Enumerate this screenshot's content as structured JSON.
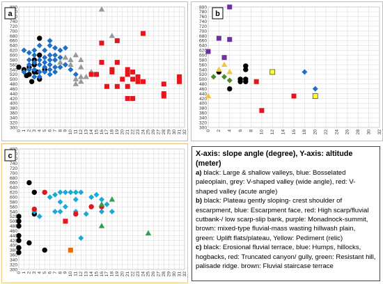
{
  "chart_data": [
    {
      "type": "scatter",
      "panel_label": "a",
      "xlim": [
        0,
        32
      ],
      "ylim": [
        300,
        800
      ],
      "xticks": [
        0,
        1,
        2,
        3,
        4,
        5,
        6,
        7,
        8,
        9,
        10,
        11,
        12,
        13,
        14,
        15,
        16,
        17,
        18,
        19,
        20,
        21,
        22,
        23,
        24,
        25,
        26,
        27,
        28,
        29,
        30,
        31,
        32
      ],
      "yticks": [
        300,
        320,
        340,
        360,
        380,
        400,
        420,
        440,
        460,
        480,
        500,
        520,
        540,
        560,
        580,
        600,
        620,
        640,
        660,
        680,
        700,
        720,
        740,
        760,
        780,
        800
      ],
      "grid": true,
      "series": [
        {
          "color": "#000000",
          "marker": "circle",
          "points": [
            [
              0,
              550
            ],
            [
              1,
              540
            ],
            [
              2,
              550
            ],
            [
              1.5,
              515
            ],
            [
              2,
              520
            ],
            [
              3,
              580
            ],
            [
              3,
              560
            ],
            [
              3,
              530
            ],
            [
              4,
              670
            ],
            [
              4,
              600
            ],
            [
              4,
              500
            ],
            [
              5,
              540
            ],
            [
              2.5,
              490
            ],
            [
              3.5,
              530
            ]
          ]
        },
        {
          "color": "#1f6fc5",
          "marker": "diamond",
          "points": [
            [
              1,
              620
            ],
            [
              2,
              610
            ],
            [
              2,
              580
            ],
            [
              2,
              560
            ],
            [
              2,
              540
            ],
            [
              1,
              530
            ],
            [
              3,
              620
            ],
            [
              3,
              600
            ],
            [
              3,
              570
            ],
            [
              3,
              540
            ],
            [
              3,
              510
            ],
            [
              4,
              580
            ],
            [
              4,
              560
            ],
            [
              4,
              530
            ],
            [
              4,
              510
            ],
            [
              5,
              620
            ],
            [
              5,
              590
            ],
            [
              5,
              570
            ],
            [
              5,
              550
            ],
            [
              5,
              530
            ],
            [
              6,
              660
            ],
            [
              6,
              640
            ],
            [
              6,
              600
            ],
            [
              6,
              580
            ],
            [
              6,
              560
            ],
            [
              6,
              540
            ],
            [
              6,
              520
            ],
            [
              7,
              630
            ],
            [
              7,
              600
            ],
            [
              7,
              580
            ],
            [
              7,
              550
            ],
            [
              7,
              530
            ],
            [
              8,
              620
            ],
            [
              8,
              590
            ],
            [
              8,
              550
            ],
            [
              9,
              630
            ],
            [
              9,
              560
            ],
            [
              10,
              540
            ],
            [
              11,
              520
            ],
            [
              4,
              640
            ]
          ]
        },
        {
          "color": "#999999",
          "marker": "triangle",
          "points": [
            [
              8,
              570
            ],
            [
              9,
              590
            ],
            [
              10,
              580
            ],
            [
              10,
              560
            ],
            [
              11,
              600
            ],
            [
              12,
              580
            ],
            [
              12,
              550
            ],
            [
              12,
              510
            ],
            [
              11,
              500
            ],
            [
              12,
              490
            ],
            [
              11,
              480
            ],
            [
              13,
              510
            ],
            [
              14,
              530
            ],
            [
              15,
              520
            ],
            [
              16,
              790
            ],
            [
              18,
              680
            ]
          ]
        },
        {
          "color": "#e8141b",
          "marker": "square",
          "points": [
            [
              14,
              520
            ],
            [
              15,
              520
            ],
            [
              16,
              650
            ],
            [
              16,
              570
            ],
            [
              17,
              470
            ],
            [
              18,
              540
            ],
            [
              18,
              530
            ],
            [
              19,
              660
            ],
            [
              19,
              470
            ],
            [
              19,
              570
            ],
            [
              20,
              500
            ],
            [
              21,
              540
            ],
            [
              21,
              520
            ],
            [
              21,
              470
            ],
            [
              21,
              420
            ],
            [
              22,
              530
            ],
            [
              22,
              500
            ],
            [
              22,
              420
            ],
            [
              23,
              510
            ],
            [
              23,
              490
            ],
            [
              24,
              690
            ],
            [
              24,
              490
            ],
            [
              28,
              480
            ],
            [
              28,
              440
            ],
            [
              28,
              430
            ],
            [
              31,
              510
            ],
            [
              31,
              490
            ]
          ]
        }
      ]
    },
    {
      "type": "scatter",
      "panel_label": "b",
      "xlim": [
        0,
        32
      ],
      "ylim": [
        300,
        800
      ],
      "xticks": [
        0,
        2,
        4,
        6,
        8,
        10,
        12,
        14,
        16,
        18,
        20,
        22,
        24,
        26,
        28,
        30,
        32
      ],
      "yticks": [
        300,
        320,
        340,
        360,
        380,
        400,
        420,
        440,
        460,
        480,
        500,
        520,
        540,
        560,
        580,
        600,
        620,
        640,
        660,
        680,
        700,
        720,
        740,
        760,
        780,
        800
      ],
      "grid": true,
      "series": [
        {
          "color": "#000000",
          "marker": "circle",
          "points": [
            [
              2,
              530
            ],
            [
              4,
              460
            ],
            [
              6,
              500
            ],
            [
              6,
              490
            ],
            [
              7,
              490
            ],
            [
              7,
              500
            ],
            [
              7,
              540
            ],
            [
              7,
              555
            ]
          ]
        },
        {
          "color": "#1f6fc5",
          "marker": "diamond",
          "points": [
            [
              18,
              530
            ],
            [
              20,
              460
            ]
          ]
        },
        {
          "color": "#e8141b",
          "marker": "square",
          "points": [
            [
              9,
              490
            ],
            [
              10,
              370
            ],
            [
              16,
              430
            ]
          ]
        },
        {
          "color": "#7030a0",
          "marker": "square",
          "points": [
            [
              0,
              615
            ],
            [
              2,
              670
            ],
            [
              3,
              590
            ],
            [
              4,
              800
            ],
            [
              4,
              665
            ]
          ]
        },
        {
          "color": "#4c8a2e",
          "marker": "diamond",
          "points": [
            [
              1,
              510
            ],
            [
              3,
              510
            ],
            [
              4,
              495
            ]
          ]
        },
        {
          "color": "#f5c242",
          "marker": "triangle",
          "points": [
            [
              0,
              430
            ],
            [
              2,
              540
            ],
            [
              3,
              560
            ],
            [
              4,
              530
            ]
          ]
        },
        {
          "color": "#ffff33",
          "marker": "square",
          "points": [
            [
              12,
              530
            ],
            [
              20,
              430
            ]
          ]
        }
      ]
    },
    {
      "type": "scatter",
      "panel_label": "c",
      "xlim": [
        0,
        32
      ],
      "ylim": [
        300,
        800
      ],
      "xticks": [
        0,
        1,
        2,
        3,
        4,
        5,
        6,
        7,
        8,
        9,
        10,
        11,
        12,
        13,
        14,
        15,
        16,
        17,
        18,
        19,
        20,
        21,
        22,
        23,
        24,
        25,
        26,
        27,
        28,
        29,
        30,
        31,
        32
      ],
      "yticks": [
        300,
        320,
        340,
        360,
        380,
        400,
        420,
        440,
        460,
        480,
        500,
        520,
        540,
        560,
        580,
        600,
        620,
        640,
        660,
        680,
        700,
        720,
        740,
        760,
        780,
        800
      ],
      "grid": true,
      "series": [
        {
          "color": "#000000",
          "marker": "circle",
          "points": [
            [
              0,
              520
            ],
            [
              0,
              500
            ],
            [
              0,
              480
            ],
            [
              0,
              440
            ],
            [
              0,
              420
            ],
            [
              0,
              390
            ],
            [
              0,
              370
            ],
            [
              2,
              660
            ],
            [
              2,
              410
            ],
            [
              3,
              620
            ],
            [
              3,
              530
            ],
            [
              5,
              380
            ]
          ]
        },
        {
          "color": "#19a8d8",
          "marker": "diamond",
          "points": [
            [
              6,
              600
            ],
            [
              7,
              610
            ],
            [
              8,
              620
            ],
            [
              8,
              580
            ],
            [
              8,
              540
            ],
            [
              9,
              620
            ],
            [
              9,
              560
            ],
            [
              10,
              620
            ],
            [
              11,
              620
            ],
            [
              11,
              590
            ],
            [
              11,
              540
            ],
            [
              12,
              620
            ],
            [
              13,
              530
            ],
            [
              14,
              560
            ],
            [
              14,
              600
            ],
            [
              15,
              610
            ],
            [
              16,
              590
            ],
            [
              16,
              540
            ],
            [
              17,
              570
            ],
            [
              18,
              540
            ],
            [
              12,
              430
            ],
            [
              7,
              540
            ],
            [
              3,
              540
            ],
            [
              4,
              520
            ]
          ]
        },
        {
          "color": "#e8141b",
          "marker": "circle",
          "points": [
            [
              3,
              550
            ],
            [
              5,
              620
            ],
            [
              11,
              530
            ],
            [
              14,
              560
            ],
            [
              16,
              560
            ]
          ]
        },
        {
          "color": "#e8141b",
          "marker": "square",
          "points": [
            [
              9,
              500
            ]
          ]
        },
        {
          "color": "#2ca04c",
          "marker": "triangle",
          "points": [
            [
              16,
              570
            ],
            [
              18,
              590
            ],
            [
              25,
              450
            ],
            [
              16,
              480
            ]
          ]
        },
        {
          "color": "#e46c0a",
          "marker": "square",
          "points": [
            [
              10,
              380
            ]
          ]
        }
      ]
    }
  ],
  "legend": {
    "heading": "X-axis: slope angle (degree), Y-axis: altitude (meter)",
    "a_tag": "a)",
    "a_text": " black: Large & shallow valleys, blue: Bosselated paleoplain, grey: V-shaped valley (wide angle), red: V-shaped valley (acute angle)",
    "b_tag": "b)",
    "b_text": " black: Plateau gently sloping- crest shoulder of escarpment, blue: Escarpment face, red: High scarp/fluvial cutbank-/ low scarp-slip bank, purple: Monadnock-summit, brown: mixed-type fluvial-mass wasting hillwash plain, green: Uplift flats/plateau, Yellow: Pediment (relic)",
    "c_tag": "c)",
    "c_text": " black: Erosional fluvial terrace, blue: Humps, hillocks, hogbacks, red: Truncated canyon/ gully, green: Resistant hill, palisade ridge. brown: Fluvial staircase terrace"
  }
}
